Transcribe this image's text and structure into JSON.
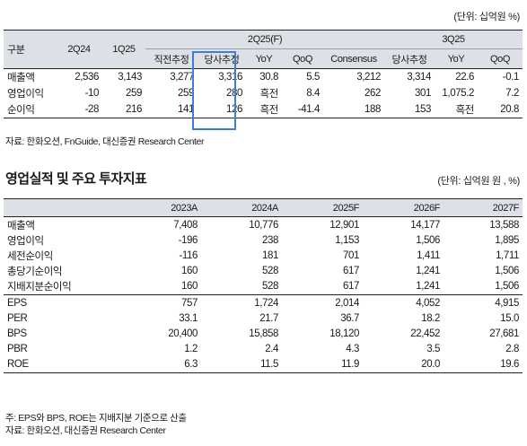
{
  "table1": {
    "unit": "(단위: 십억원 %)",
    "header": {
      "label": "구분",
      "col_2q24": "2Q24",
      "col_1q25": "1Q25",
      "group_2q25": "2Q25(F)",
      "group_3q25": "3Q25",
      "sub": [
        "직전추정",
        "당사추정",
        "YoY",
        "QoQ",
        "Consensus",
        "당사추정",
        "YoY",
        "QoQ"
      ]
    },
    "rows": [
      {
        "label": "매출액",
        "values": [
          "2,536",
          "3,143",
          "3,277",
          "3,316",
          "30.8",
          "5.5",
          "3,212",
          "3,314",
          "22.6",
          "-0.1"
        ]
      },
      {
        "label": "영업이익",
        "values": [
          "-10",
          "259",
          "259",
          "280",
          "흑전",
          "8.4",
          "262",
          "301",
          "1,075.2",
          "7.2"
        ]
      },
      {
        "label": "순이익",
        "values": [
          "-28",
          "216",
          "141",
          "126",
          "흑전",
          "-41.4",
          "188",
          "153",
          "흑전",
          "20.8"
        ]
      }
    ],
    "source": "자료: 한화오션, FnGuide, 대신증권 Research Center"
  },
  "section_title": "영업실적 및 주요 투자지표",
  "table2": {
    "unit": "(단위: 십억원 원 , %)",
    "header": [
      "",
      "2023A",
      "2024A",
      "2025F",
      "2026F",
      "2027F"
    ],
    "rows": [
      {
        "label": "매출액",
        "values": [
          "7,408",
          "10,776",
          "12,901",
          "14,177",
          "13,588"
        ]
      },
      {
        "label": "영업이익",
        "values": [
          "-196",
          "238",
          "1,153",
          "1,506",
          "1,895"
        ]
      },
      {
        "label": "세전순이익",
        "values": [
          "-116",
          "181",
          "701",
          "1,411",
          "1,711"
        ]
      },
      {
        "label": "총당기순이익",
        "values": [
          "160",
          "528",
          "617",
          "1,241",
          "1,506"
        ]
      },
      {
        "label": "지배지분순이익",
        "values": [
          "160",
          "528",
          "617",
          "1,241",
          "1,506"
        ]
      },
      {
        "label": "EPS",
        "values": [
          "757",
          "1,724",
          "2,014",
          "4,052",
          "4,915"
        ]
      },
      {
        "label": "PER",
        "values": [
          "33.1",
          "21.7",
          "36.7",
          "18.2",
          "15.0"
        ]
      },
      {
        "label": "BPS",
        "values": [
          "20,400",
          "15,858",
          "18,120",
          "22,452",
          "27,681"
        ]
      },
      {
        "label": "PBR",
        "values": [
          "1.2",
          "2.4",
          "4.3",
          "3.5",
          "2.8"
        ]
      },
      {
        "label": "ROE",
        "values": [
          "6.3",
          "11.5",
          "11.9",
          "20.0",
          "19.6"
        ]
      }
    ],
    "note": "주: EPS와 BPS, ROE는 지배지분 기준으로 산출",
    "source": "자료: 한화오션, 대신증권 Research Center"
  }
}
